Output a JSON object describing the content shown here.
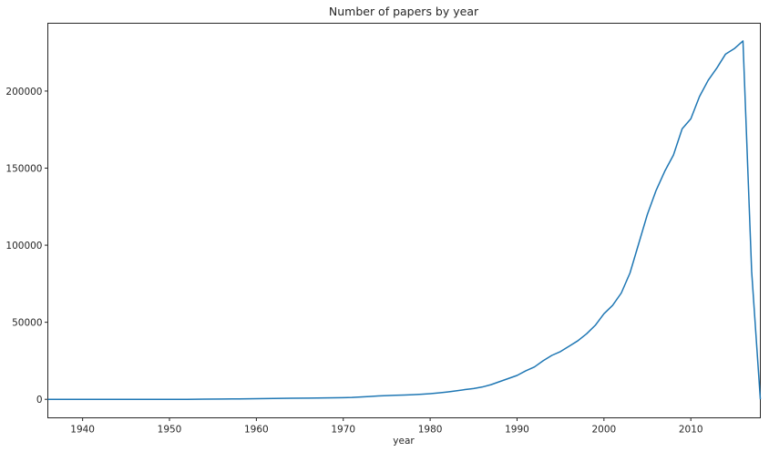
{
  "chart_data": {
    "type": "line",
    "title": "Number of papers by year",
    "xlabel": "year",
    "ylabel": "",
    "xlim": [
      1936,
      2018
    ],
    "ylim": [
      -12000,
      244000
    ],
    "xticks": [
      1940,
      1950,
      1960,
      1970,
      1980,
      1990,
      2000,
      2010
    ],
    "yticks": [
      0,
      50000,
      100000,
      150000,
      200000
    ],
    "grid": false,
    "legend": "none",
    "colors": {
      "line": "#1f77b4",
      "axis": "#262626",
      "background": "#ffffff"
    },
    "series": [
      {
        "x": [
          1936,
          1938,
          1940,
          1942,
          1944,
          1946,
          1948,
          1950,
          1952,
          1954,
          1956,
          1958,
          1960,
          1962,
          1964,
          1966,
          1968,
          1970,
          1971,
          1972,
          1973,
          1974,
          1975,
          1976,
          1977,
          1978,
          1979,
          1980,
          1981,
          1982,
          1983,
          1984,
          1985,
          1986,
          1987,
          1988,
          1989,
          1990,
          1991,
          1992,
          1993,
          1994,
          1995,
          1996,
          1997,
          1998,
          1999,
          2000,
          2001,
          2002,
          2003,
          2004,
          2005,
          2006,
          2007,
          2008,
          2009,
          2010,
          2011,
          2012,
          2013,
          2014,
          2015,
          2016,
          2017,
          2018
        ],
        "y": [
          0,
          0,
          0,
          0,
          0,
          0,
          0,
          0,
          0,
          100,
          200,
          300,
          400,
          600,
          700,
          800,
          900,
          1100,
          1200,
          1500,
          1800,
          2200,
          2400,
          2600,
          2800,
          3000,
          3300,
          3700,
          4200,
          4800,
          5500,
          6300,
          7000,
          8000,
          9500,
          11500,
          13500,
          15500,
          18500,
          21000,
          25000,
          28500,
          31000,
          34500,
          38000,
          42500,
          48000,
          55500,
          61000,
          69000,
          82000,
          101000,
          120000,
          135500,
          148000,
          158500,
          175500,
          182000,
          196500,
          207000,
          215000,
          224000,
          227500,
          232500,
          83000,
          0
        ]
      }
    ]
  }
}
